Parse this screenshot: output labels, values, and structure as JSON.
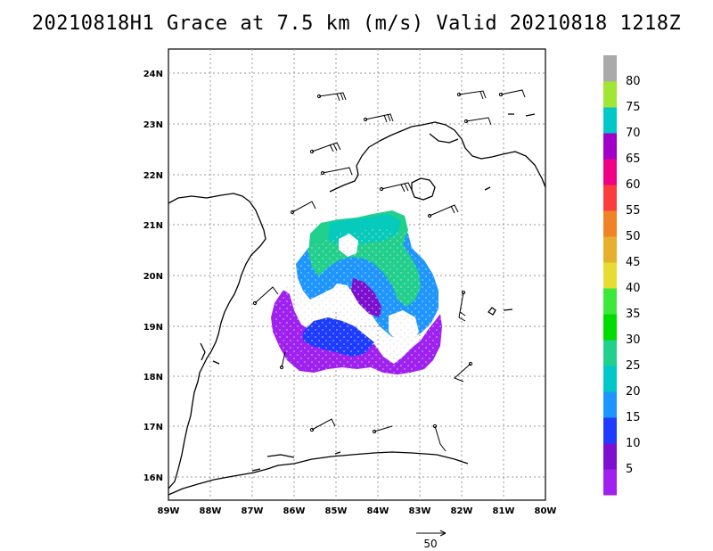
{
  "title": "20210818H1 Grace at 7.5 km (m/s) Valid 20210818 1218Z",
  "map": {
    "lon_labels": [
      "89W",
      "88W",
      "87W",
      "86W",
      "85W",
      "84W",
      "83W",
      "82W",
      "81W",
      "80W"
    ],
    "lat_labels": [
      "16N",
      "17N",
      "18N",
      "19N",
      "20N",
      "21N",
      "22N",
      "23N",
      "24N"
    ]
  },
  "colorbar": {
    "labels": [
      "5",
      "10",
      "15",
      "20",
      "25",
      "30",
      "35",
      "40",
      "45",
      "50",
      "55",
      "60",
      "65",
      "70",
      "75",
      "80"
    ],
    "colors": [
      "#a020f0",
      "#7d0fd0",
      "#1e3cff",
      "#1e96ff",
      "#00c8c8",
      "#20d08c",
      "#00dc00",
      "#3ce83c",
      "#e6dc32",
      "#e6af2d",
      "#f08228",
      "#fa3c3c",
      "#f00082",
      "#a000c8",
      "#00c8c8",
      "#a0e632",
      "#aaaaaa"
    ]
  },
  "reference_vector": {
    "label": "50"
  }
}
